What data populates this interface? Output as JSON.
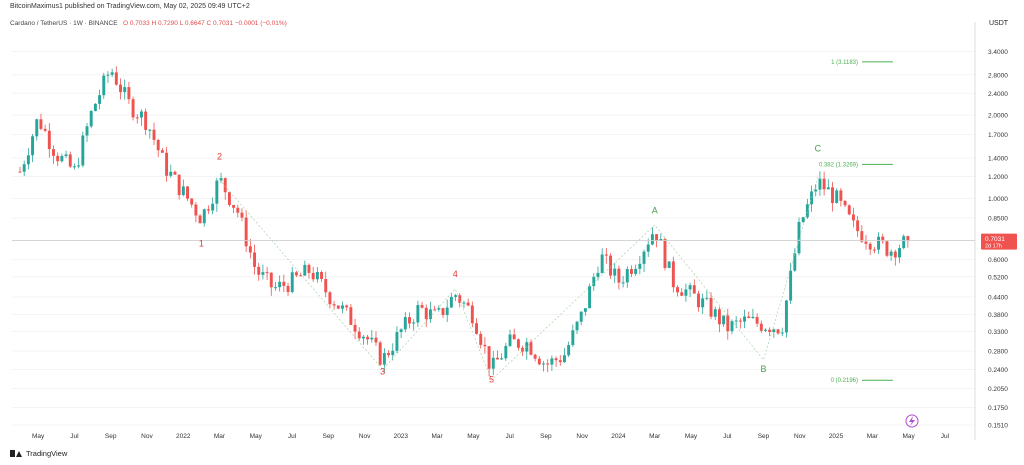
{
  "header": {
    "publisher": "BitcoinMaximus1 published on TradingView.com, May 02, 2025 09:49 UTC+2",
    "instrument": "Cardano / TetherUS · 1W · BINANCE",
    "ohlc": "O 0.7033  H 0.7290  L 0.6647  C 0.7031  −0.0001 (−0.01%)"
  },
  "footer": {
    "brand": "TradingView"
  },
  "currency": "USDT",
  "colors": {
    "up": "#26a69a",
    "down": "#ef5350",
    "fib": "#4caf50",
    "wave_red": "#e53935",
    "wave_green": "#43a047",
    "price_bg": "#ef5350"
  },
  "chart_data": {
    "type": "candlestick",
    "scale": "log",
    "ylim": [
      0.145,
      4.0
    ],
    "y_ticks": [
      "3.4000",
      "2.8000",
      "2.4000",
      "2.0000",
      "1.7000",
      "1.4000",
      "1.2000",
      "1.0000",
      "0.8500",
      "0.7031",
      "0.6000",
      "0.5200",
      "0.4400",
      "0.3800",
      "0.3300",
      "0.2800",
      "0.2400",
      "0.2050",
      "0.1750",
      "0.1510"
    ],
    "current_price": {
      "value": 0.7031,
      "label": "0.7031",
      "countdown": "2d 17h"
    },
    "x_ticks": [
      "May",
      "Jul",
      "Sep",
      "Nov",
      "2022",
      "Mar",
      "May",
      "Jul",
      "Sep",
      "Nov",
      "2023",
      "Mar",
      "May",
      "Jul",
      "Sep",
      "Nov",
      "2024",
      "Mar",
      "May",
      "Jul",
      "Sep",
      "Nov",
      "2025",
      "Mar",
      "May",
      "Jul"
    ],
    "x_range": [
      "2021-04",
      "2025-08"
    ],
    "series_path": [
      [
        "2021-04",
        1.25
      ],
      [
        "2021-05",
        1.95
      ],
      [
        "2021-06",
        1.45
      ],
      [
        "2021-07",
        1.25
      ],
      [
        "2021-08",
        2.1
      ],
      [
        "2021-09",
        2.95
      ],
      [
        "2021-10",
        2.2
      ],
      [
        "2021-11",
        1.9
      ],
      [
        "2021-12",
        1.3
      ],
      [
        "2022-01",
        1.05
      ],
      [
        "2022-02",
        0.85
      ],
      [
        "2022-03",
        1.17
      ],
      [
        "2022-04",
        0.9
      ],
      [
        "2022-05",
        0.55
      ],
      [
        "2022-06",
        0.47
      ],
      [
        "2022-07",
        0.5
      ],
      [
        "2022-08",
        0.55
      ],
      [
        "2022-09",
        0.45
      ],
      [
        "2022-10",
        0.38
      ],
      [
        "2022-11",
        0.32
      ],
      [
        "2022-12",
        0.26
      ],
      [
        "2023-01",
        0.33
      ],
      [
        "2023-02",
        0.4
      ],
      [
        "2023-03",
        0.37
      ],
      [
        "2023-04",
        0.45
      ],
      [
        "2023-05",
        0.38
      ],
      [
        "2023-06",
        0.24
      ],
      [
        "2023-07",
        0.3
      ],
      [
        "2023-08",
        0.3
      ],
      [
        "2023-09",
        0.25
      ],
      [
        "2023-10",
        0.27
      ],
      [
        "2023-11",
        0.38
      ],
      [
        "2023-12",
        0.62
      ],
      [
        "2024-01",
        0.5
      ],
      [
        "2024-02",
        0.6
      ],
      [
        "2024-03",
        0.78
      ],
      [
        "2024-04",
        0.5
      ],
      [
        "2024-05",
        0.45
      ],
      [
        "2024-06",
        0.4
      ],
      [
        "2024-07",
        0.34
      ],
      [
        "2024-08",
        0.36
      ],
      [
        "2024-09",
        0.35
      ],
      [
        "2024-10",
        0.34
      ],
      [
        "2024-11",
        0.8
      ],
      [
        "2024-12",
        1.15
      ],
      [
        "2025-01",
        1.0
      ],
      [
        "2025-02",
        0.78
      ],
      [
        "2025-03",
        0.7
      ],
      [
        "2025-04",
        0.65
      ],
      [
        "2025-05",
        0.7031
      ]
    ],
    "wave_labels": [
      {
        "text": "1",
        "date": "2022-02",
        "price": 0.67,
        "color": "red"
      },
      {
        "text": "2",
        "date": "2022-03",
        "price": 1.38,
        "color": "red"
      },
      {
        "text": "3",
        "date": "2022-12",
        "price": 0.23,
        "color": "red"
      },
      {
        "text": "4",
        "date": "2023-04",
        "price": 0.52,
        "color": "red"
      },
      {
        "text": "5",
        "date": "2023-06",
        "price": 0.215,
        "color": "red"
      },
      {
        "text": "A",
        "date": "2024-03",
        "price": 0.88,
        "color": "green"
      },
      {
        "text": "B",
        "date": "2024-09",
        "price": 0.235,
        "color": "green"
      },
      {
        "text": "C",
        "date": "2024-12",
        "price": 1.48,
        "color": "green"
      }
    ],
    "wave_path": [
      [
        "2022-03",
        1.17
      ],
      [
        "2022-12",
        0.24
      ],
      [
        "2023-04",
        0.47
      ],
      [
        "2023-06",
        0.22
      ],
      [
        "2024-03",
        0.8
      ],
      [
        "2024-09",
        0.26
      ],
      [
        "2024-12",
        1.2
      ]
    ],
    "fib_levels": [
      {
        "label": "1 (3.1183)",
        "value": 3.1183
      },
      {
        "label": "0.382 (1.3269)",
        "value": 1.3269
      },
      {
        "label": "0 (0.2196)",
        "value": 0.2196
      }
    ]
  }
}
